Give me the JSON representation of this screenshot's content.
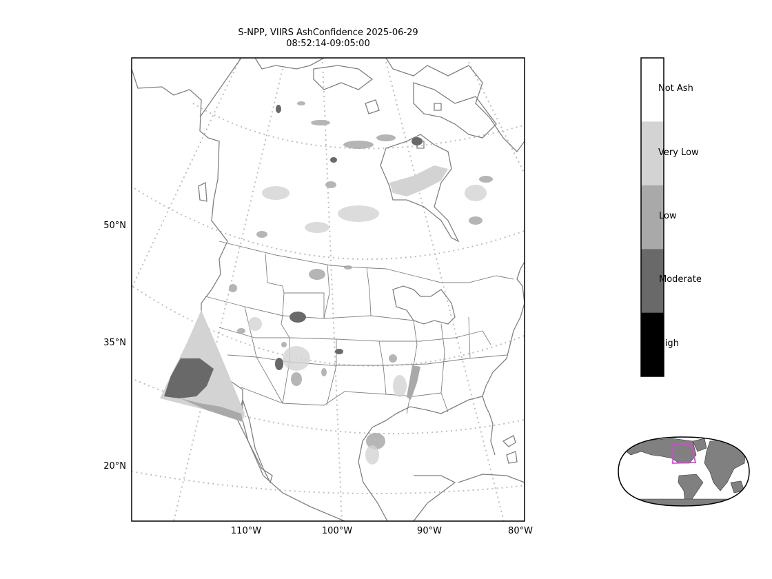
{
  "title": {
    "line1": "S-NPP, VIIRS AshConfidence 2025-06-29",
    "line2": "08:52:14-09:05:00"
  },
  "lat_labels": [
    "50°N",
    "35°N",
    "20°N"
  ],
  "lon_labels": [
    "110°W",
    "100°W",
    "90°W",
    "80°W"
  ],
  "colorbar": {
    "classes": [
      {
        "label": "Not Ash",
        "color": "#ffffff"
      },
      {
        "label": "Very Low",
        "color": "#d3d3d3"
      },
      {
        "label": "Low",
        "color": "#a9a9a9"
      },
      {
        "label": "Moderate",
        "color": "#696969"
      },
      {
        "label": "High",
        "color": "#000000"
      }
    ]
  },
  "colors": {
    "coastline": "#808080",
    "gridline": "#bdbdbd",
    "inset_land": "#808080",
    "inset_extent": "#e040e0"
  }
}
